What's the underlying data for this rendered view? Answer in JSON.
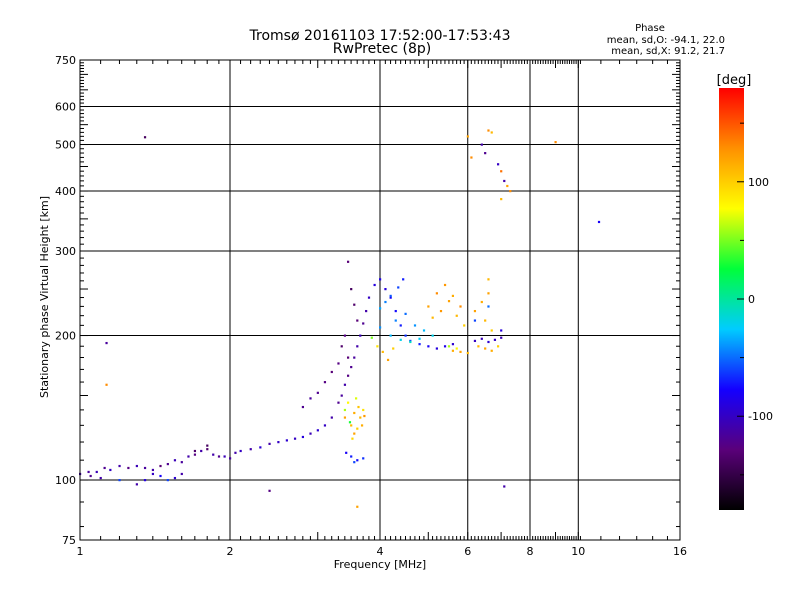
{
  "chart_data": {
    "type": "scatter",
    "title": "Tromsø 20161103 17:52:00-17:53:43",
    "subtitle": "RwPretec (8p)",
    "xlabel": "Frequency [MHz]",
    "ylabel": "Stationary phase Virtual Height [km]",
    "x_scale": "log",
    "y_scale": "log",
    "xlim": [
      1,
      16
    ],
    "ylim": [
      75,
      750
    ],
    "x_ticks": [
      1,
      2,
      4,
      6,
      8,
      10,
      16
    ],
    "y_ticks": [
      75,
      100,
      200,
      300,
      400,
      500,
      600,
      750
    ],
    "grid": true,
    "phase_info": {
      "title": "Phase",
      "line1": "mean, sd,O: -94.1, 22.0",
      "line2": "mean, sd,X:  91.2, 21.7"
    },
    "colorbar": {
      "label": "[deg]",
      "range": [
        -180,
        180
      ],
      "ticks": [
        -100,
        0,
        100
      ],
      "colors": [
        "#000000",
        "#5a007a",
        "#1400ff",
        "#00ccff",
        "#00ff3a",
        "#ffff00",
        "#ff9000",
        "#ff0000"
      ]
    },
    "series": [
      {
        "points": [
          [
            1.0,
            103,
            -110
          ],
          [
            1.04,
            104,
            -115
          ],
          [
            1.08,
            104,
            -105
          ],
          [
            1.12,
            106,
            -120
          ],
          [
            1.15,
            105,
            -100
          ],
          [
            1.2,
            107,
            -110
          ],
          [
            1.25,
            106,
            -125
          ],
          [
            1.3,
            107,
            -105
          ],
          [
            1.35,
            106,
            -115
          ],
          [
            1.4,
            105,
            -110
          ],
          [
            1.45,
            107,
            -130
          ],
          [
            1.5,
            108,
            -120
          ],
          [
            1.55,
            110,
            -105
          ],
          [
            1.6,
            109,
            -115
          ],
          [
            1.65,
            112,
            -110
          ],
          [
            1.7,
            113,
            -125
          ],
          [
            1.75,
            115,
            -110
          ],
          [
            1.8,
            116,
            -135
          ],
          [
            1.85,
            113,
            -110
          ],
          [
            1.9,
            112,
            -120
          ],
          [
            1.95,
            112,
            -105
          ],
          [
            2.0,
            111,
            -115
          ],
          [
            2.05,
            114,
            -110
          ],
          [
            2.1,
            115,
            -100
          ],
          [
            2.2,
            116,
            -110
          ],
          [
            2.3,
            117,
            -95
          ],
          [
            2.4,
            119,
            -110
          ],
          [
            2.5,
            120,
            -100
          ],
          [
            2.6,
            121,
            -95
          ],
          [
            2.7,
            122,
            -100
          ],
          [
            2.8,
            123,
            -90
          ],
          [
            2.9,
            125,
            -105
          ],
          [
            3.0,
            127,
            -95
          ],
          [
            3.1,
            130,
            -100
          ],
          [
            3.2,
            135,
            -110
          ],
          [
            3.3,
            145,
            -120
          ],
          [
            3.35,
            150,
            -115
          ],
          [
            3.4,
            158,
            -110
          ],
          [
            3.45,
            165,
            -125
          ],
          [
            3.5,
            172,
            -120
          ],
          [
            3.55,
            180,
            -115
          ],
          [
            3.6,
            190,
            -110
          ],
          [
            3.65,
            200,
            -105
          ],
          [
            3.7,
            212,
            -120
          ],
          [
            3.75,
            225,
            -110
          ],
          [
            3.8,
            240,
            -100
          ],
          [
            3.9,
            255,
            -90
          ],
          [
            4.0,
            262,
            -85
          ],
          [
            4.1,
            250,
            -90
          ],
          [
            4.2,
            240,
            -80
          ],
          [
            4.3,
            225,
            -75
          ],
          [
            4.4,
            210,
            -70
          ],
          [
            4.5,
            200,
            -65
          ],
          [
            4.6,
            195,
            -60
          ],
          [
            4.8,
            192,
            -70
          ],
          [
            5.0,
            190,
            -80
          ],
          [
            5.2,
            188,
            -90
          ],
          [
            5.4,
            190,
            -85
          ],
          [
            5.6,
            192,
            -95
          ],
          [
            6.2,
            195,
            -100
          ],
          [
            6.4,
            197,
            -105
          ],
          [
            6.6,
            194,
            -95
          ],
          [
            6.8,
            196,
            -100
          ],
          [
            7.0,
            198,
            -105
          ],
          [
            3.45,
            285,
            -130
          ],
          [
            3.5,
            250,
            -140
          ],
          [
            3.55,
            232,
            -135
          ],
          [
            3.6,
            215,
            -130
          ],
          [
            3.4,
            200,
            -125
          ],
          [
            3.35,
            190,
            -135
          ],
          [
            3.45,
            180,
            -130
          ],
          [
            3.3,
            175,
            -125
          ],
          [
            3.2,
            168,
            -130
          ],
          [
            3.1,
            160,
            -125
          ],
          [
            3.0,
            152,
            -120
          ],
          [
            2.9,
            148,
            -115
          ],
          [
            2.8,
            142,
            -120
          ],
          [
            1.8,
            118,
            -140
          ],
          [
            1.7,
            115,
            -135
          ],
          [
            1.6,
            103,
            -110
          ],
          [
            1.55,
            101,
            -95
          ],
          [
            1.5,
            100,
            -60
          ],
          [
            1.45,
            102,
            -80
          ],
          [
            1.4,
            103,
            -100
          ],
          [
            1.35,
            100,
            -90
          ],
          [
            1.3,
            98,
            -110
          ],
          [
            1.2,
            100,
            -60
          ],
          [
            1.1,
            101,
            -110
          ],
          [
            1.05,
            102,
            -120
          ],
          [
            1.13,
            193,
            -115
          ],
          [
            1.13,
            158,
            130
          ],
          [
            1.35,
            518,
            -140
          ],
          [
            2.4,
            95,
            -125
          ],
          [
            3.6,
            88,
            120
          ],
          [
            7.1,
            97,
            -110
          ],
          [
            9.0,
            506,
            130
          ],
          [
            11.0,
            345,
            -80
          ],
          [
            3.4,
            135,
            120
          ],
          [
            3.5,
            130,
            110
          ],
          [
            3.55,
            138,
            115
          ],
          [
            3.6,
            128,
            100
          ],
          [
            3.65,
            135,
            110
          ],
          [
            3.7,
            140,
            90
          ],
          [
            3.45,
            145,
            80
          ],
          [
            3.55,
            125,
            120
          ],
          [
            3.62,
            142,
            105
          ],
          [
            3.68,
            130,
            115
          ],
          [
            3.52,
            122,
            95
          ],
          [
            3.4,
            140,
            60
          ],
          [
            3.58,
            148,
            70
          ],
          [
            3.72,
            136,
            125
          ],
          [
            3.48,
            132,
            30
          ],
          [
            3.42,
            114,
            -80
          ],
          [
            3.5,
            112,
            -70
          ],
          [
            3.6,
            110,
            -75
          ],
          [
            3.7,
            111,
            -65
          ],
          [
            3.55,
            109,
            -60
          ],
          [
            4.0,
            208,
            -40
          ],
          [
            4.2,
            200,
            -30
          ],
          [
            4.4,
            196,
            -20
          ],
          [
            4.6,
            194,
            -10
          ],
          [
            4.8,
            197,
            -25
          ],
          [
            4.3,
            215,
            -45
          ],
          [
            4.5,
            222,
            -50
          ],
          [
            4.7,
            210,
            -40
          ],
          [
            4.9,
            205,
            -30
          ],
          [
            5.1,
            200,
            -20
          ],
          [
            4.0,
            228,
            -35
          ],
          [
            4.1,
            235,
            -45
          ],
          [
            4.2,
            242,
            -55
          ],
          [
            4.35,
            252,
            -60
          ],
          [
            4.45,
            262,
            -70
          ],
          [
            3.85,
            198,
            50
          ],
          [
            3.95,
            190,
            90
          ],
          [
            4.05,
            185,
            110
          ],
          [
            4.15,
            178,
            120
          ],
          [
            4.25,
            188,
            100
          ],
          [
            5.0,
            230,
            120
          ],
          [
            5.2,
            245,
            130
          ],
          [
            5.4,
            255,
            125
          ],
          [
            5.6,
            242,
            115
          ],
          [
            5.8,
            230,
            130
          ],
          [
            5.1,
            218,
            110
          ],
          [
            5.3,
            225,
            125
          ],
          [
            5.5,
            236,
            120
          ],
          [
            5.7,
            220,
            110
          ],
          [
            5.9,
            210,
            100
          ],
          [
            5.6,
            186,
            115
          ],
          [
            5.8,
            185,
            120
          ],
          [
            6.0,
            184,
            110
          ],
          [
            5.5,
            190,
            60
          ],
          [
            5.7,
            188,
            80
          ],
          [
            6.2,
            225,
            120
          ],
          [
            6.4,
            235,
            115
          ],
          [
            6.6,
            245,
            120
          ],
          [
            6.5,
            215,
            110
          ],
          [
            6.7,
            205,
            100
          ],
          [
            6.3,
            190,
            110
          ],
          [
            6.5,
            188,
            120
          ],
          [
            6.7,
            186,
            115
          ],
          [
            6.9,
            190,
            100
          ],
          [
            6.6,
            262,
            110
          ],
          [
            6.6,
            535,
            130
          ],
          [
            6.4,
            500,
            -110
          ],
          [
            6.5,
            480,
            -120
          ],
          [
            6.7,
            530,
            110
          ],
          [
            6.0,
            520,
            120
          ],
          [
            6.1,
            470,
            130
          ],
          [
            7.0,
            440,
            140
          ],
          [
            7.1,
            420,
            -110
          ],
          [
            7.2,
            410,
            120
          ],
          [
            7.3,
            400,
            130
          ],
          [
            7.0,
            385,
            110
          ],
          [
            6.9,
            455,
            -100
          ],
          [
            6.2,
            215,
            -60
          ],
          [
            6.6,
            230,
            -50
          ],
          [
            7.0,
            205,
            -90
          ]
        ]
      }
    ]
  }
}
